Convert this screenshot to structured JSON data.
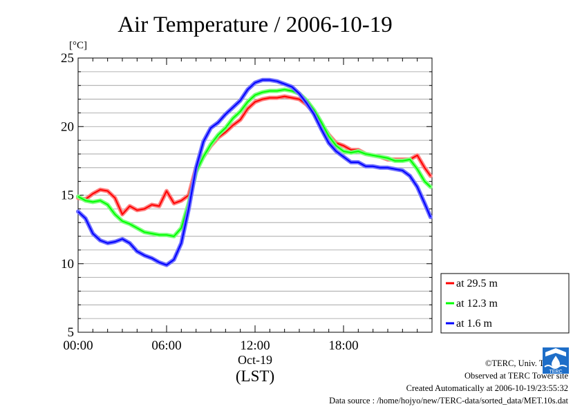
{
  "chart_data": {
    "type": "line",
    "title": "Air Temperature / 2006-10-19",
    "ylabel": "[°C]",
    "xlabel": "(LST)",
    "date_label": "Oct-19",
    "xlim_hours": [
      0,
      24
    ],
    "ylim": [
      5,
      25
    ],
    "y_ticks": [
      "5",
      "10",
      "15",
      "20",
      "25"
    ],
    "x_ticks": [
      "00:00",
      "06:00",
      "12:00",
      "18:00"
    ],
    "grid": true,
    "legend_position": "right-bottom",
    "series": [
      {
        "name": "at 29.5 m",
        "color": "#ff0000",
        "x": [
          0,
          0.5,
          1,
          1.5,
          2,
          2.5,
          3,
          3.5,
          4,
          4.5,
          5,
          5.5,
          6,
          6.5,
          7,
          7.5,
          8,
          8.5,
          9,
          9.5,
          10,
          10.5,
          11,
          11.5,
          12,
          12.5,
          13,
          13.5,
          14,
          14.5,
          15,
          15.5,
          16,
          16.5,
          17,
          17.5,
          18,
          18.5,
          19,
          19.5,
          20,
          20.5,
          21,
          21.5,
          22,
          22.5,
          23,
          23.5,
          23.9
        ],
        "values": [
          14.8,
          14.7,
          15.1,
          15.4,
          15.3,
          14.8,
          13.6,
          14.2,
          13.9,
          14.0,
          14.3,
          14.2,
          15.3,
          14.4,
          14.6,
          15.0,
          17.0,
          17.8,
          18.6,
          19.2,
          19.6,
          20.1,
          20.5,
          21.3,
          21.8,
          22.0,
          22.1,
          22.1,
          22.2,
          22.1,
          22.0,
          21.6,
          21.0,
          20.2,
          19.4,
          18.8,
          18.6,
          18.3,
          18.3,
          18.0,
          17.9,
          17.8,
          17.6,
          17.6,
          17.6,
          17.6,
          17.9,
          17.0,
          16.4
        ]
      },
      {
        "name": "at 12.3 m",
        "color": "#00ff00",
        "x": [
          0,
          0.5,
          1,
          1.5,
          2,
          2.5,
          3,
          3.5,
          4,
          4.5,
          5,
          5.5,
          6,
          6.5,
          7,
          7.5,
          8,
          8.5,
          9,
          9.5,
          10,
          10.5,
          11,
          11.5,
          12,
          12.5,
          13,
          13.5,
          14,
          14.5,
          15,
          15.5,
          16,
          16.5,
          17,
          17.5,
          18,
          18.5,
          19,
          19.5,
          20,
          20.5,
          21,
          21.5,
          22,
          22.5,
          23,
          23.5,
          23.9
        ],
        "values": [
          14.9,
          14.6,
          14.5,
          14.6,
          14.3,
          13.6,
          13.1,
          12.9,
          12.6,
          12.3,
          12.2,
          12.1,
          12.1,
          12.0,
          12.6,
          14.4,
          16.7,
          17.8,
          18.7,
          19.4,
          19.9,
          20.6,
          21.1,
          21.8,
          22.3,
          22.5,
          22.6,
          22.6,
          22.7,
          22.6,
          22.4,
          21.9,
          21.2,
          20.3,
          19.3,
          18.6,
          18.2,
          18.1,
          18.2,
          18.0,
          17.9,
          17.8,
          17.7,
          17.5,
          17.5,
          17.6,
          16.9,
          16.0,
          15.6
        ]
      },
      {
        "name": "at 1.6 m",
        "color": "#0000ff",
        "x": [
          0,
          0.5,
          1,
          1.5,
          2,
          2.5,
          3,
          3.5,
          4,
          4.5,
          5,
          5.5,
          6,
          6.5,
          7,
          7.5,
          8,
          8.5,
          9,
          9.5,
          10,
          10.5,
          11,
          11.5,
          12,
          12.5,
          13,
          13.5,
          14,
          14.5,
          15,
          15.5,
          16,
          16.5,
          17,
          17.5,
          18,
          18.5,
          19,
          19.5,
          20,
          20.5,
          21,
          21.5,
          22,
          22.5,
          23,
          23.5,
          23.9
        ],
        "values": [
          13.8,
          13.3,
          12.2,
          11.7,
          11.5,
          11.6,
          11.8,
          11.5,
          10.9,
          10.6,
          10.4,
          10.1,
          9.9,
          10.3,
          11.5,
          14.0,
          17.0,
          18.9,
          19.9,
          20.3,
          20.9,
          21.4,
          21.9,
          22.7,
          23.2,
          23.4,
          23.4,
          23.3,
          23.1,
          22.9,
          22.4,
          21.7,
          20.9,
          19.8,
          18.8,
          18.2,
          17.8,
          17.4,
          17.4,
          17.1,
          17.1,
          17.0,
          17.0,
          16.9,
          16.8,
          16.4,
          15.6,
          14.4,
          13.4
        ]
      }
    ]
  },
  "footer": {
    "copyright": "©TERC, Univ. Tsukuba",
    "observed": "Observed at TERC Tower site",
    "created": "Created Automatically at 2006-10-19/23:55:32",
    "source": "Data source : /home/hojyo/new/TERC-data/sorted_data/MET.10s.dat"
  },
  "logo": {
    "text": "TERC",
    "color": "#1e6ec8"
  }
}
